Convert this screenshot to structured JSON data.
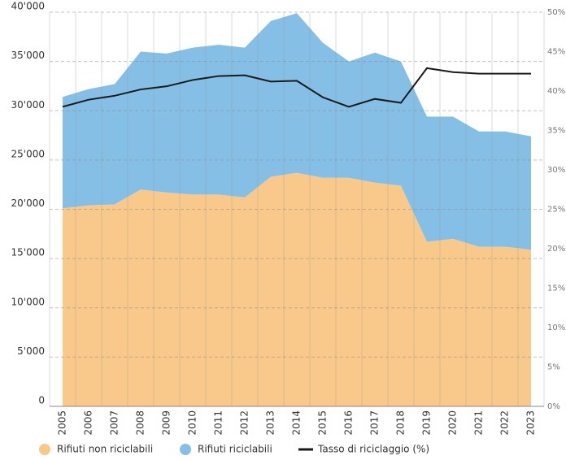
{
  "chart_data": {
    "type": "stacked-area",
    "categories": [
      "2005",
      "2006",
      "2007",
      "2008",
      "2009",
      "2010",
      "2011",
      "2012",
      "2013",
      "2014",
      "2015",
      "2016",
      "2017",
      "2018",
      "2019",
      "2020",
      "2021",
      "2022",
      "2023"
    ],
    "series": [
      {
        "name": "Rifiuti non riciclabili",
        "color": "#f9c98b",
        "values": [
          20100,
          20400,
          20500,
          22000,
          21700,
          21500,
          21500,
          21200,
          23300,
          23700,
          23200,
          23200,
          22700,
          22400,
          16700,
          17000,
          16200,
          16200,
          15900
        ]
      },
      {
        "name": "Rifiuti riciclabili",
        "color": "#85bfe6",
        "values": [
          11300,
          11800,
          12200,
          14000,
          14100,
          14900,
          15200,
          15200,
          15800,
          16200,
          13700,
          11800,
          13200,
          12600,
          12700,
          12400,
          11700,
          11700,
          11500
        ]
      },
      {
        "name": "Tasso di riciclaggio (%)",
        "color": "#1a1a1a",
        "type": "line",
        "axis": "y2",
        "values": [
          38.0,
          38.9,
          39.4,
          40.2,
          40.6,
          41.4,
          41.9,
          42.0,
          41.2,
          41.3,
          39.2,
          38.0,
          39.0,
          38.5,
          42.9,
          42.4,
          42.2,
          42.2,
          42.2
        ]
      }
    ],
    "ylim": [
      0,
      40000
    ],
    "yticks": [
      0,
      {
        "value": 5000,
        "label": "5'000"
      },
      {
        "value": 10000,
        "label": "10'000"
      },
      {
        "value": 15000,
        "label": "15'000"
      },
      {
        "value": 20000,
        "label": "20'000"
      },
      {
        "value": 25000,
        "label": "25'000"
      },
      {
        "value": 30000,
        "label": "30'000"
      },
      {
        "value": 35000,
        "label": "35'000"
      },
      {
        "value": 40000,
        "label": "40'000"
      }
    ],
    "y2lim": [
      0,
      50
    ],
    "y2ticks": [
      {
        "value": 0,
        "label": "0%"
      },
      {
        "value": 5,
        "label": "5%"
      },
      {
        "value": 10,
        "label": "10%"
      },
      {
        "value": 15,
        "label": "15%"
      },
      {
        "value": 20,
        "label": "20%"
      },
      {
        "value": 25,
        "label": "25%"
      },
      {
        "value": 30,
        "label": "30%"
      },
      {
        "value": 35,
        "label": "35%"
      },
      {
        "value": 40,
        "label": "40%"
      },
      {
        "value": 45,
        "label": "45%"
      },
      {
        "value": 50,
        "label": "50%"
      }
    ],
    "grid": true,
    "legend": "bottom"
  }
}
